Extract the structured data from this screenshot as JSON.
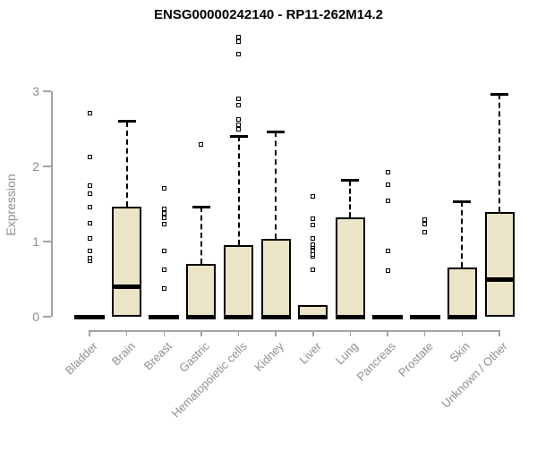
{
  "title": "ENSG00000242140 - RP11-262M14.2",
  "colors": {
    "box_fill": "#ece4c6",
    "box_border": "#000000",
    "axis": "#a3a3a3",
    "tick_label": "#8f8f8f",
    "title": "#000000"
  },
  "y_axis": {
    "label": "Expression",
    "tick_labels": [
      "0",
      "1",
      "2",
      "3"
    ]
  },
  "x_axis": {
    "categories": [
      "Bladder",
      "Brain",
      "Breast",
      "Gastric",
      "Hematopoietic cells",
      "Kidney",
      "Liver",
      "Lung",
      "Pancreas",
      "Prostate",
      "Skin",
      "Unknown / Other"
    ]
  },
  "chart_data": {
    "type": "boxplot",
    "title": "ENSG00000242140 - RP11-262M14.2",
    "xlabel": "",
    "ylabel": "Expression",
    "ylim": [
      0,
      3.9
    ],
    "yticks": [
      0,
      1,
      2,
      3
    ],
    "grid": false,
    "legend": false,
    "categories": [
      "Bladder",
      "Brain",
      "Breast",
      "Gastric",
      "Hematopoietic cells",
      "Kidney",
      "Liver",
      "Lung",
      "Pancreas",
      "Prostate",
      "Skin",
      "Unknown / Other"
    ],
    "series": [
      {
        "name": "Bladder",
        "q1": 0,
        "median": 0,
        "q3": 0,
        "whisker_low": 0,
        "whisker_high": 0,
        "outliers": [
          0.74,
          0.78,
          0.88,
          1.04,
          1.24,
          1.46,
          1.64,
          1.74,
          2.12,
          2.71
        ]
      },
      {
        "name": "Brain",
        "q1": 0,
        "median": 0.4,
        "q3": 1.46,
        "whisker_low": 0,
        "whisker_high": 2.6,
        "outliers": []
      },
      {
        "name": "Breast",
        "q1": 0,
        "median": 0,
        "q3": 0,
        "whisker_low": 0,
        "whisker_high": 0,
        "outliers": [
          0.37,
          0.62,
          0.88,
          1.23,
          1.32,
          1.38,
          1.43,
          1.71
        ]
      },
      {
        "name": "Gastric",
        "q1": 0,
        "median": 0,
        "q3": 0.7,
        "whisker_low": 0,
        "whisker_high": 1.46,
        "outliers": [
          2.29
        ]
      },
      {
        "name": "Hematopoietic cells",
        "q1": 0,
        "median": 0,
        "q3": 0.95,
        "whisker_low": 0,
        "whisker_high": 2.4,
        "outliers": [
          2.49,
          2.55,
          2.63,
          2.82,
          2.9,
          3.5,
          3.66,
          3.72
        ]
      },
      {
        "name": "Kidney",
        "q1": 0,
        "median": 0,
        "q3": 1.04,
        "whisker_low": 0,
        "whisker_high": 2.46,
        "outliers": []
      },
      {
        "name": "Liver",
        "q1": 0,
        "median": 0,
        "q3": 0.16,
        "whisker_low": 0,
        "whisker_high": 0.16,
        "outliers": [
          0.62,
          0.8,
          0.83,
          0.88,
          0.94,
          0.96,
          1.04,
          1.22,
          1.3,
          1.6
        ]
      },
      {
        "name": "Lung",
        "q1": 0,
        "median": 0,
        "q3": 1.32,
        "whisker_low": 0,
        "whisker_high": 1.81,
        "outliers": []
      },
      {
        "name": "Pancreas",
        "q1": 0,
        "median": 0,
        "q3": 0,
        "whisker_low": 0,
        "whisker_high": 0,
        "outliers": [
          0.61,
          0.88,
          1.54,
          1.76,
          1.92
        ]
      },
      {
        "name": "Prostate",
        "q1": 0,
        "median": 0,
        "q3": 0,
        "whisker_low": 0,
        "whisker_high": 0,
        "outliers": [
          1.12,
          1.23,
          1.29
        ]
      },
      {
        "name": "Skin",
        "q1": 0,
        "median": 0,
        "q3": 0.65,
        "whisker_low": 0,
        "whisker_high": 1.53,
        "outliers": []
      },
      {
        "name": "Unknown / Other",
        "q1": 0,
        "median": 0.5,
        "q3": 1.39,
        "whisker_low": 0,
        "whisker_high": 2.96,
        "outliers": []
      }
    ]
  }
}
